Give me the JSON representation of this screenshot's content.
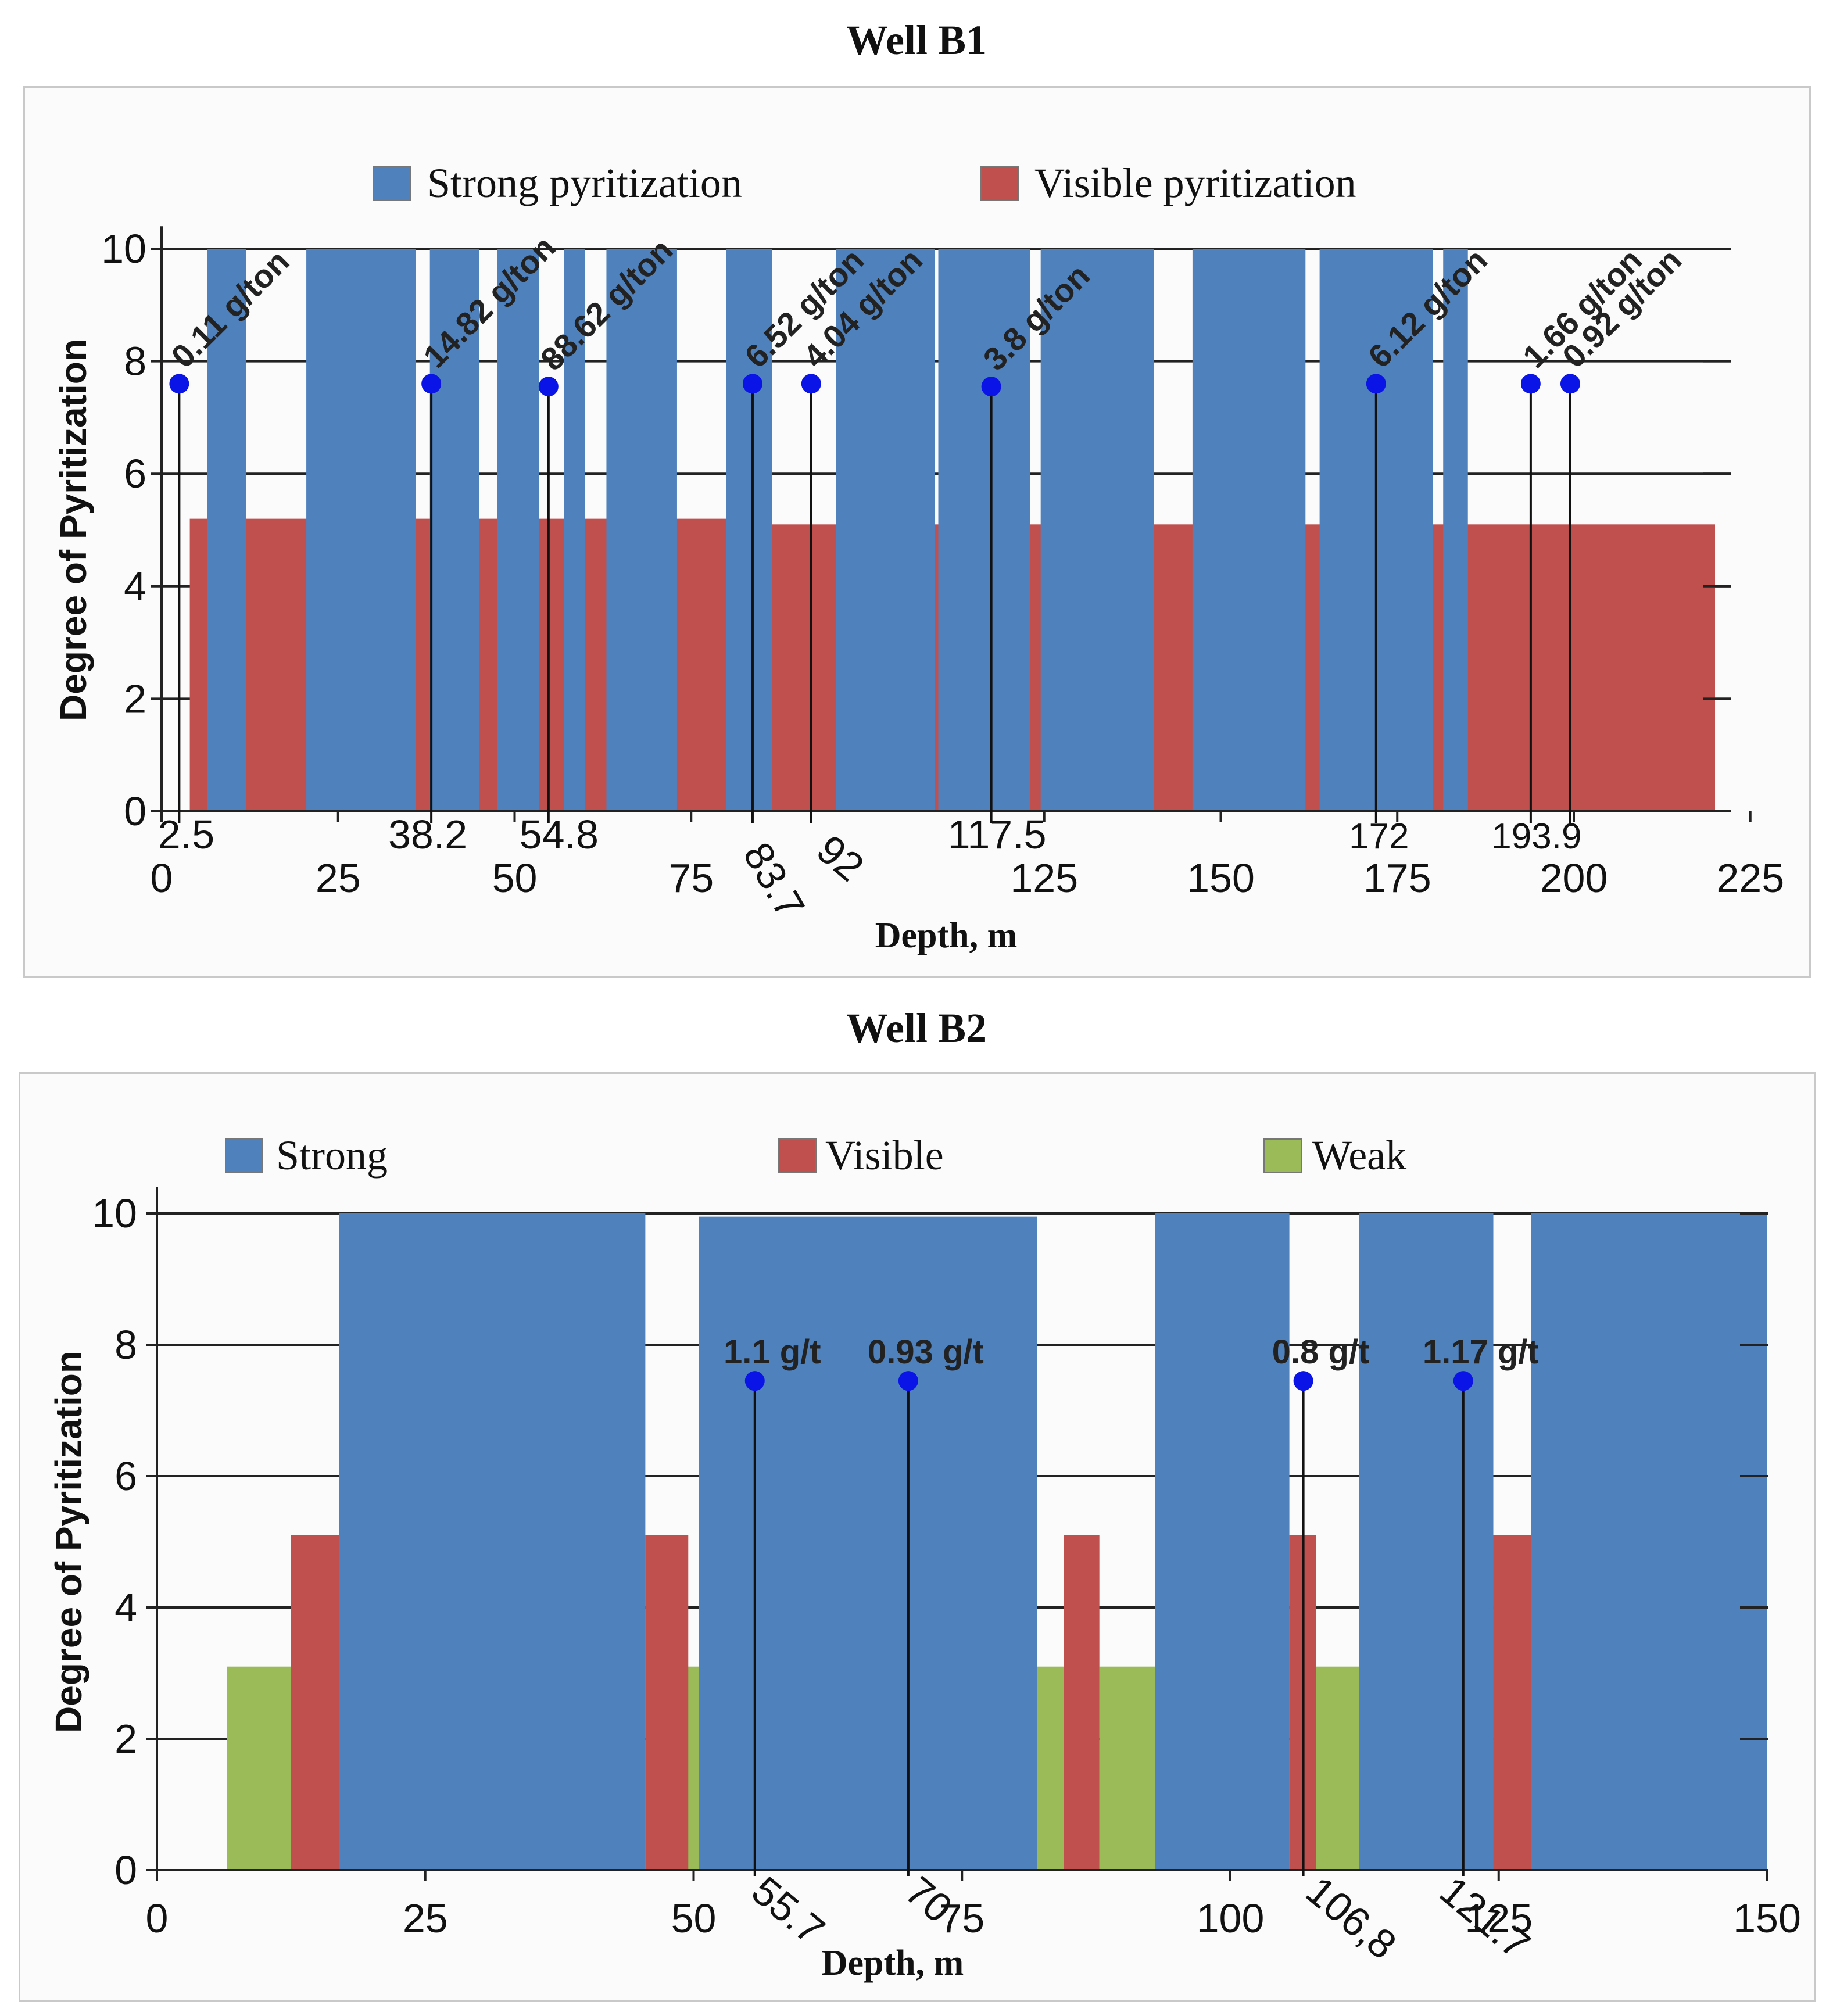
{
  "chart_data": [
    {
      "type": "bar",
      "title": "Well B1",
      "xlabel": "Depth, m",
      "ylabel": "Degree of Pyritization",
      "xlim": [
        0,
        225
      ],
      "ylim": [
        0,
        10
      ],
      "x_ticks": [
        "0",
        "25",
        "50",
        "75",
        "125",
        "150",
        "175",
        "200",
        "225"
      ],
      "x_tick_values": [
        0,
        25,
        50,
        75,
        125,
        150,
        175,
        200,
        225
      ],
      "y_ticks": [
        "0",
        "2",
        "4",
        "6",
        "8",
        "10"
      ],
      "legend": [
        "Strong pyritization",
        "Visible pyritization"
      ],
      "series": [
        {
          "name": "Visible pyritization",
          "color": "#c0504d",
          "intervals": [
            {
              "from": 4,
              "to": 36,
              "value": 5.2
            },
            {
              "from": 36,
              "to": 69,
              "value": 5.2
            },
            {
              "from": 69,
              "to": 86,
              "value": 5.2
            },
            {
              "from": 86,
              "to": 110,
              "value": 5.1
            },
            {
              "from": 110,
              "to": 177,
              "value": 5.1
            },
            {
              "from": 177,
              "to": 220,
              "value": 5.1
            }
          ]
        },
        {
          "name": "Strong pyritization",
          "color": "#4f81bd",
          "intervals": [
            {
              "from": 6.5,
              "to": 12,
              "value": 10
            },
            {
              "from": 20.5,
              "to": 36,
              "value": 10
            },
            {
              "from": 38,
              "to": 45,
              "value": 10
            },
            {
              "from": 47.5,
              "to": 53.5,
              "value": 10
            },
            {
              "from": 57,
              "to": 60,
              "value": 10
            },
            {
              "from": 63,
              "to": 73,
              "value": 10
            },
            {
              "from": 80,
              "to": 86.5,
              "value": 10
            },
            {
              "from": 95.5,
              "to": 109.5,
              "value": 10
            },
            {
              "from": 110,
              "to": 123,
              "value": 10
            },
            {
              "from": 124.5,
              "to": 140.5,
              "value": 10
            },
            {
              "from": 146,
              "to": 162,
              "value": 10
            },
            {
              "from": 164,
              "to": 180,
              "value": 10
            },
            {
              "from": 181.5,
              "to": 185,
              "value": 10
            }
          ]
        }
      ],
      "annotations": [
        {
          "depth": 2.5,
          "depth_label": "2.5",
          "grade": "0.11 g/ton",
          "y": 7.6
        },
        {
          "depth": 38.2,
          "depth_label": "38.2",
          "grade": "14.82 g/ton",
          "y": 7.6
        },
        {
          "depth": 54.8,
          "depth_label": "54.8",
          "grade": "88.62 g/ton",
          "y": 7.55
        },
        {
          "depth": 83.7,
          "depth_label": "83.7",
          "grade": "6.52 g/ton",
          "y": 7.6
        },
        {
          "depth": 92,
          "depth_label": "92",
          "grade": "4.04 g/ton",
          "y": 7.6
        },
        {
          "depth": 117.5,
          "depth_label": "117.5",
          "grade": "3.8 g/ton",
          "y": 7.55
        },
        {
          "depth": 172,
          "depth_label": "172",
          "grade": "6.12 g/ton",
          "y": 7.6
        },
        {
          "depth": 193.9,
          "depth_label": "193.9",
          "grade": "1.66 g/ton",
          "y": 7.6
        },
        {
          "depth": 199.5,
          "depth_label": "",
          "grade": "0.92 g/ton",
          "y": 7.6
        }
      ]
    },
    {
      "type": "bar",
      "title": "Well B2",
      "xlabel": "Depth, m",
      "ylabel": "Degree of Pyritization",
      "xlim": [
        0,
        150
      ],
      "ylim": [
        0,
        10
      ],
      "x_ticks": [
        "0",
        "25",
        "50",
        "75",
        "100",
        "125",
        "150"
      ],
      "x_tick_values": [
        0,
        25,
        50,
        75,
        100,
        125,
        150
      ],
      "y_ticks": [
        "0",
        "2",
        "4",
        "6",
        "8",
        "10"
      ],
      "legend": [
        "Strong",
        "Visible",
        "Weak"
      ],
      "series": [
        {
          "name": "Weak",
          "color": "#9bbb59",
          "intervals": [
            {
              "from": 6.5,
              "to": 12.5,
              "value": 3.1
            },
            {
              "from": 49,
              "to": 50.5,
              "value": 3.1
            },
            {
              "from": 82,
              "to": 85,
              "value": 3.1
            },
            {
              "from": 87.8,
              "to": 93,
              "value": 3.1
            },
            {
              "from": 108,
              "to": 112,
              "value": 3.1
            }
          ]
        },
        {
          "name": "Visible",
          "color": "#c0504d",
          "intervals": [
            {
              "from": 12.5,
              "to": 17,
              "value": 5.1
            },
            {
              "from": 45.5,
              "to": 49.5,
              "value": 5.1
            },
            {
              "from": 84.5,
              "to": 87.8,
              "value": 5.1
            },
            {
              "from": 105.5,
              "to": 108,
              "value": 5.1
            },
            {
              "from": 124.5,
              "to": 128,
              "value": 5.1
            }
          ]
        },
        {
          "name": "Strong",
          "color": "#4f81bd",
          "intervals": [
            {
              "from": 17,
              "to": 45.5,
              "value": 10
            },
            {
              "from": 50.5,
              "to": 82,
              "value": 9.95
            },
            {
              "from": 93,
              "to": 105.5,
              "value": 10
            },
            {
              "from": 112,
              "to": 124.5,
              "value": 10
            },
            {
              "from": 128,
              "to": 150,
              "value": 10
            }
          ]
        }
      ],
      "annotations": [
        {
          "depth": 55.7,
          "depth_label": "55.7",
          "grade": "1.1 g/t",
          "y": 7.45
        },
        {
          "depth": 70,
          "depth_label": "70",
          "grade": "0.93 g/t",
          "y": 7.45
        },
        {
          "depth": 106.8,
          "depth_label": "106,8",
          "grade": "0.8 g/t",
          "y": 7.45
        },
        {
          "depth": 121.7,
          "depth_label": "121.7",
          "grade": "1.17 g/t",
          "y": 7.45
        }
      ]
    }
  ]
}
